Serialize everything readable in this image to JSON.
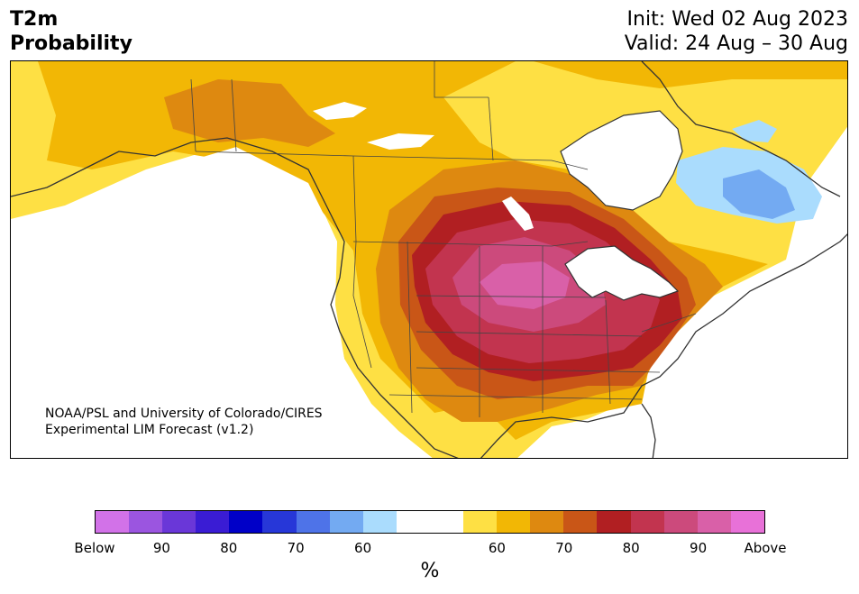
{
  "header": {
    "title_line1": "T2m",
    "title_line2": "Probability",
    "init_line": "Init: Wed 02 Aug 2023",
    "valid_line": "Valid: 24 Aug – 30 Aug"
  },
  "map": {
    "credit_line1": "NOAA/PSL and University of Colorado/CIRES",
    "credit_line2": "Experimental LIM Forecast (v1.2)",
    "region": "North America"
  },
  "colorbar": {
    "unit": "%",
    "colors": [
      "#d272e8",
      "#9b55e0",
      "#6a37d8",
      "#3a1cd4",
      "#0000c8",
      "#2737d8",
      "#4e73e8",
      "#73aaf2",
      "#aadcfd",
      "#ffffff",
      "#ffffff",
      "#fee044",
      "#f2b705",
      "#de8910",
      "#c95617",
      "#b11f22",
      "#c2344f",
      "#cc4a7c",
      "#d960a8",
      "#e871d8"
    ],
    "tick_labels": [
      "Below",
      "90",
      "80",
      "70",
      "60",
      "60",
      "70",
      "80",
      "90",
      "Above"
    ]
  }
}
